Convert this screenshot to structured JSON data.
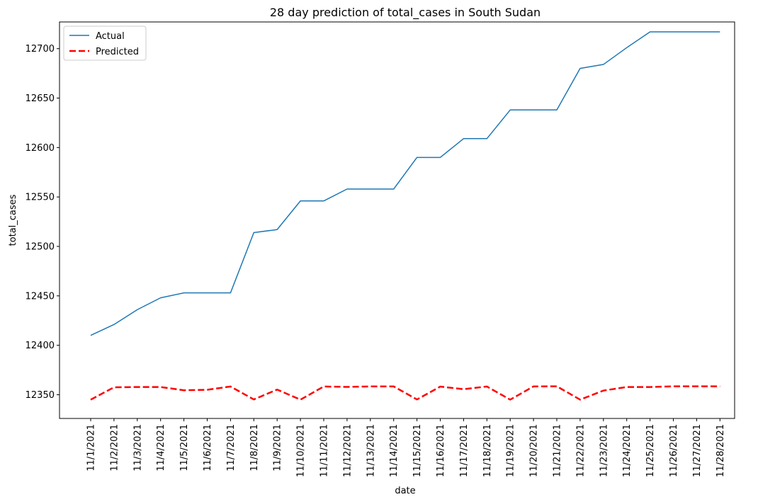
{
  "chart_data": {
    "type": "line",
    "title": "28 day prediction of total_cases in South Sudan",
    "xlabel": "date",
    "ylabel": "total_cases",
    "categories": [
      "11/1/2021",
      "11/2/2021",
      "11/3/2021",
      "11/4/2021",
      "11/5/2021",
      "11/6/2021",
      "11/7/2021",
      "11/8/2021",
      "11/9/2021",
      "11/10/2021",
      "11/11/2021",
      "11/12/2021",
      "11/13/2021",
      "11/14/2021",
      "11/15/2021",
      "11/16/2021",
      "11/17/2021",
      "11/18/2021",
      "11/19/2021",
      "11/20/2021",
      "11/21/2021",
      "11/22/2021",
      "11/23/2021",
      "11/24/2021",
      "11/25/2021",
      "11/26/2021",
      "11/27/2021",
      "11/28/2021"
    ],
    "ylim": [
      12326,
      12727
    ],
    "yticks": [
      12350,
      12400,
      12450,
      12500,
      12550,
      12600,
      12650,
      12700
    ],
    "grid": false,
    "legend_position": "top-left",
    "series": [
      {
        "name": "Actual",
        "color": "#1f77b4",
        "style": "solid",
        "values": [
          12410,
          12421,
          12436,
          12448,
          12453,
          12453,
          12453,
          12514,
          12517,
          12546,
          12546,
          12558,
          12558,
          12558,
          12590,
          12590,
          12609,
          12609,
          12638,
          12638,
          12638,
          12680,
          12684,
          12701,
          12717,
          12717,
          12717,
          12717
        ]
      },
      {
        "name": "Predicted",
        "color": "#ff0000",
        "style": "dashed",
        "values": [
          12345,
          12357.5,
          12357.8,
          12357.8,
          12354.5,
          12355,
          12358.3,
          12345.2,
          12355.2,
          12345,
          12358.3,
          12357.9,
          12358.4,
          12358.4,
          12345.2,
          12358.2,
          12355.6,
          12358.3,
          12345,
          12358.4,
          12358.5,
          12345,
          12354.2,
          12357.8,
          12357.8,
          12358.5,
          12358.5,
          12358.5
        ]
      }
    ]
  }
}
